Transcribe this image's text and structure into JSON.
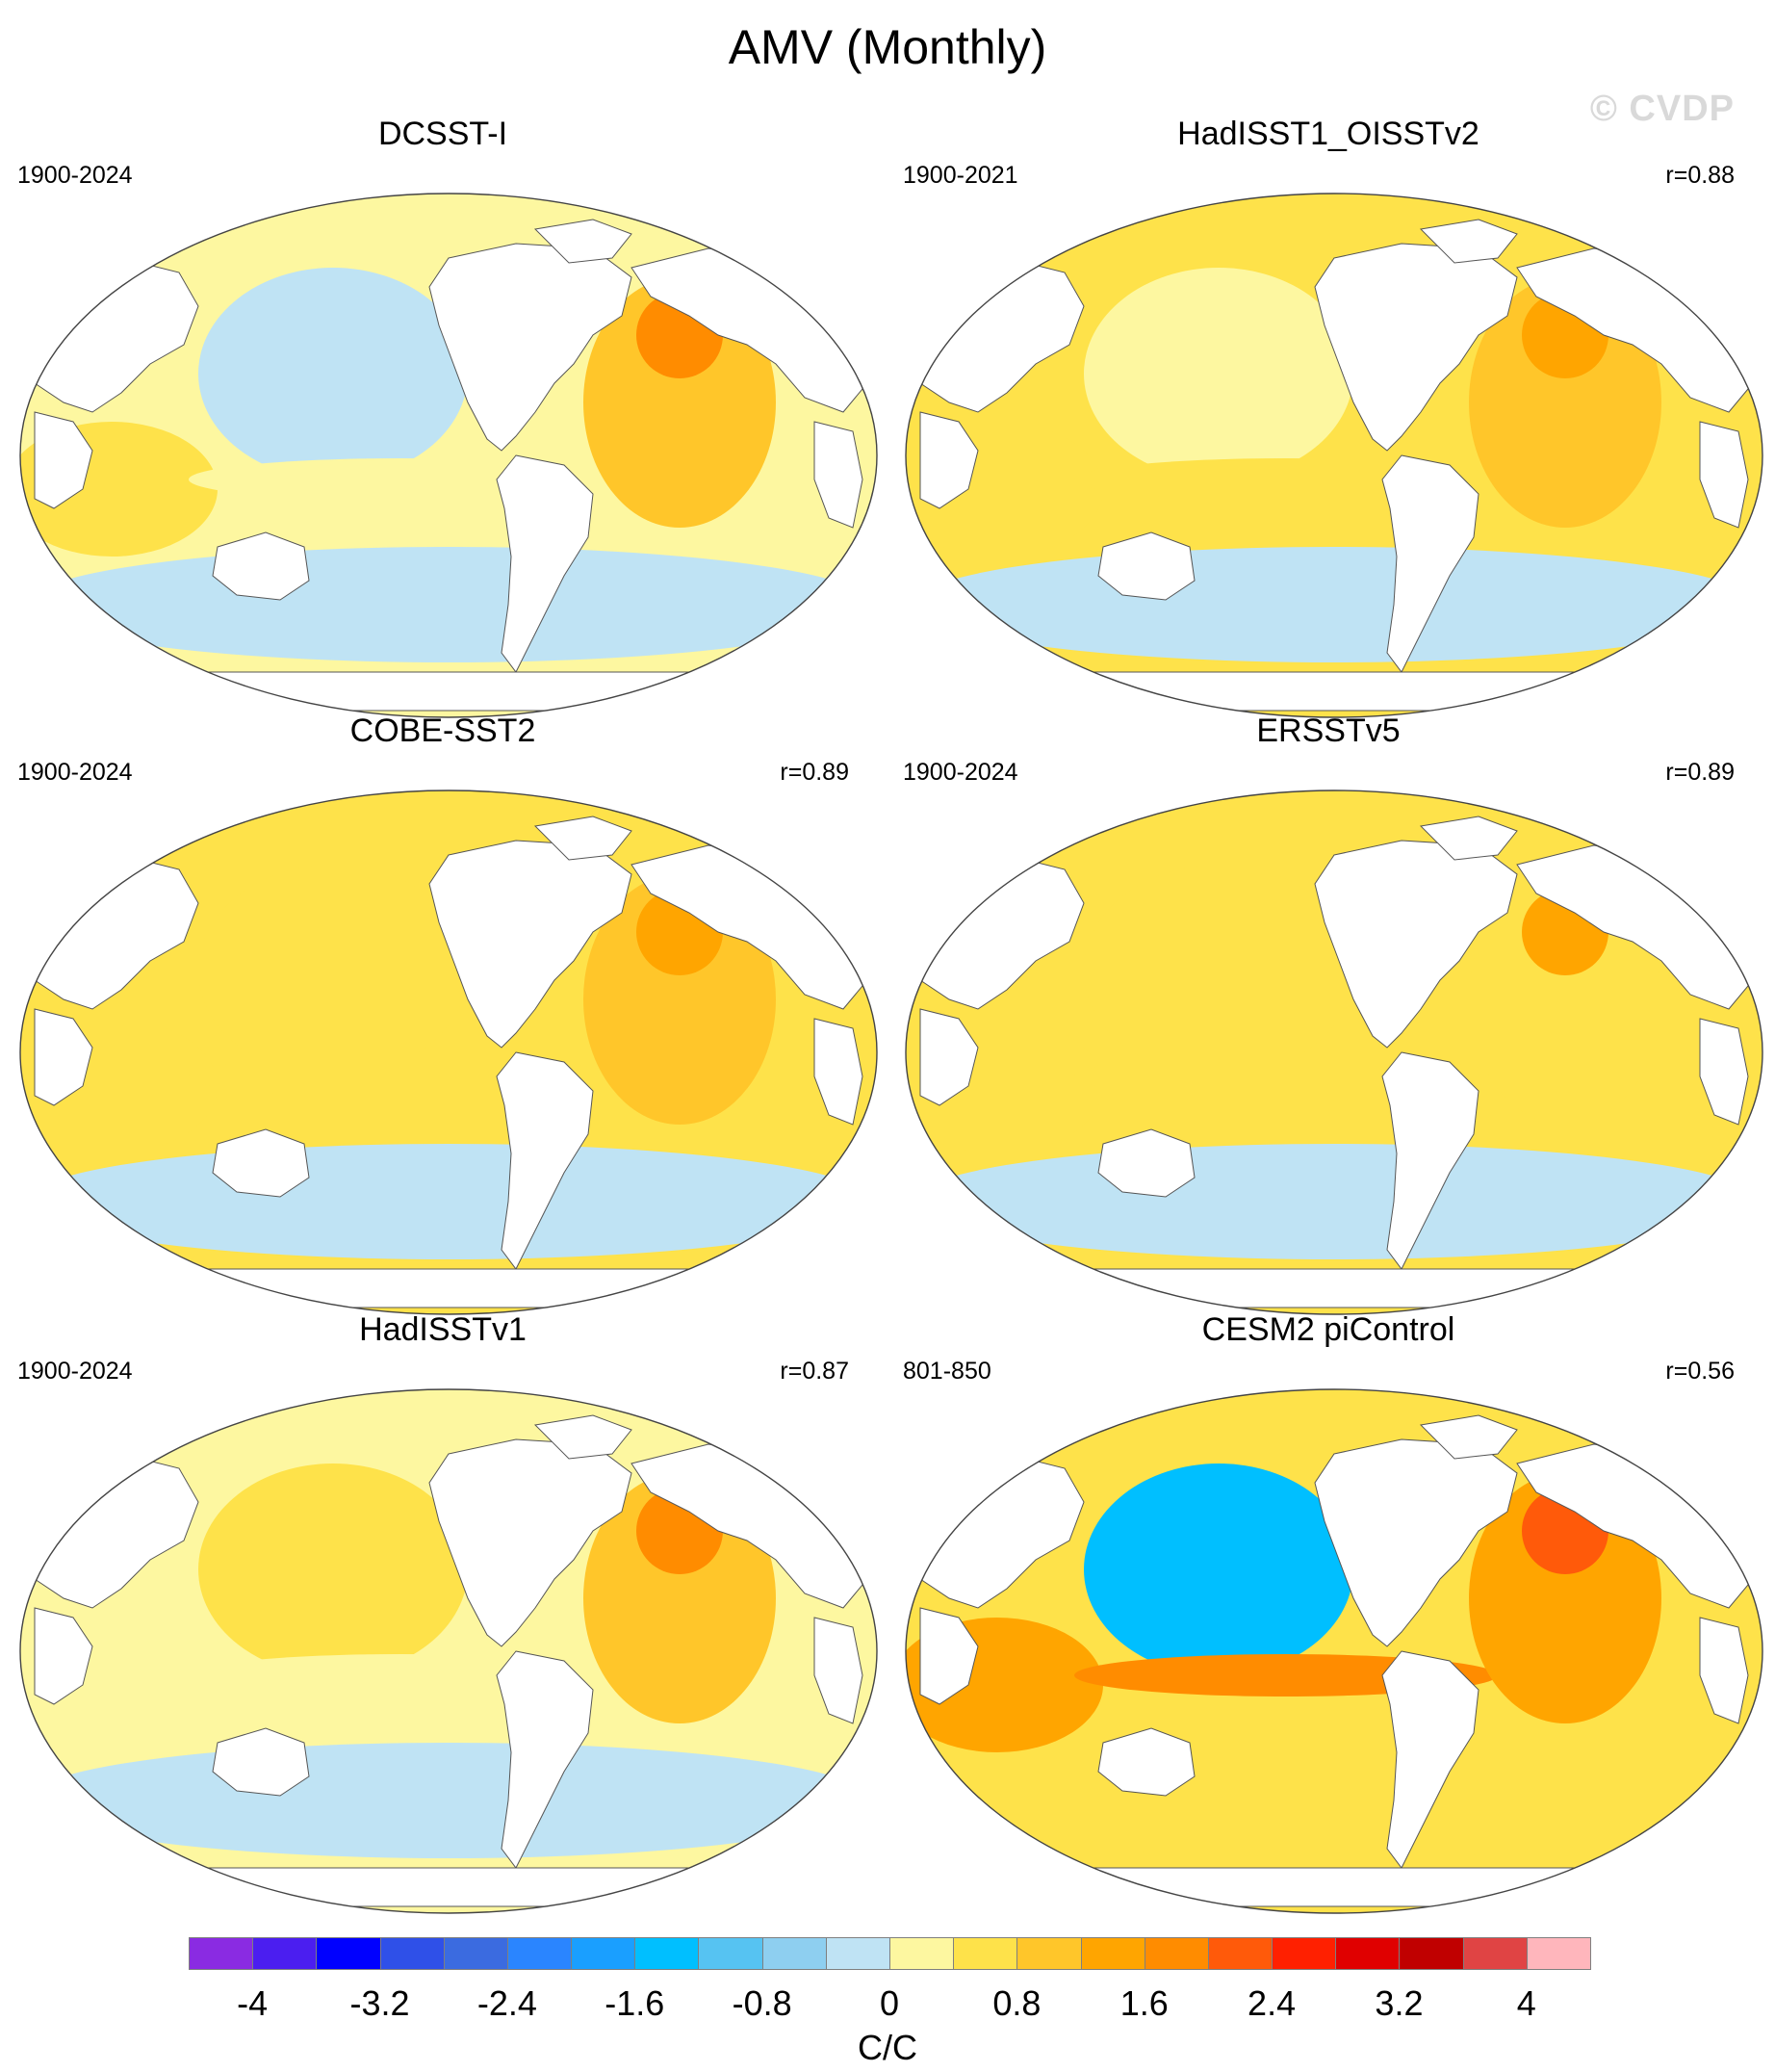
{
  "figure": {
    "title": "AMV (Monthly)",
    "copyright": "© CVDP"
  },
  "chart_data": [
    {
      "type": "heatmap",
      "projection": "robinson",
      "title": "DCSST-I",
      "period": "1900-2024",
      "correlation": "",
      "patterns": {
        "north_atlantic": 1.6,
        "north_pacific": -0.2,
        "tropics": 0.3,
        "southern_ocean": -0.4,
        "indian_ocean": 0.5,
        "tropical_pacific_east": 0.3
      }
    },
    {
      "type": "heatmap",
      "projection": "robinson",
      "title": "HadISST1_OISSTv2",
      "period": "1900-2021",
      "correlation": "r=0.88",
      "patterns": {
        "north_atlantic": 1.5,
        "north_pacific": 0.3,
        "tropics": 0.4,
        "southern_ocean": -0.2,
        "indian_ocean": 0.4,
        "tropical_pacific_east": 0.4
      }
    },
    {
      "type": "heatmap",
      "projection": "robinson",
      "title": "COBE-SST2",
      "period": "1900-2024",
      "correlation": "r=0.89",
      "patterns": {
        "north_atlantic": 1.5,
        "north_pacific": 0.5,
        "tropics": 0.4,
        "southern_ocean": -0.3,
        "indian_ocean": 0.5,
        "tropical_pacific_east": 0.4
      }
    },
    {
      "type": "heatmap",
      "projection": "robinson",
      "title": "ERSSTv5",
      "period": "1900-2024",
      "correlation": "r=0.89",
      "patterns": {
        "north_atlantic": 1.3,
        "north_pacific": 0.4,
        "tropics": 0.4,
        "southern_ocean": -0.4,
        "indian_ocean": 0.4,
        "tropical_pacific_east": 0.5
      }
    },
    {
      "type": "heatmap",
      "projection": "robinson",
      "title": "HadISSTv1",
      "period": "1900-2024",
      "correlation": "r=0.87",
      "patterns": {
        "north_atlantic": 1.6,
        "north_pacific": 0.4,
        "tropics": 0.3,
        "southern_ocean": -0.3,
        "indian_ocean": 0.3,
        "tropical_pacific_east": 0.3
      }
    },
    {
      "type": "heatmap",
      "projection": "robinson",
      "title": "CESM2 piControl",
      "period": "801-850",
      "correlation": "r=0.56",
      "patterns": {
        "north_atlantic": 2.0,
        "north_pacific": -1.6,
        "tropics": 0.6,
        "southern_ocean": 0.4,
        "indian_ocean": 1.2,
        "tropical_pacific_east": 1.8
      }
    }
  ],
  "colorbar": {
    "units": "C/C",
    "ticks": [
      "-4",
      "-3.2",
      "-2.4",
      "-1.6",
      "-0.8",
      "0",
      "0.8",
      "1.6",
      "2.4",
      "3.2",
      "4"
    ],
    "levels": [
      -4.4,
      -4.0,
      -3.6,
      -3.2,
      -2.8,
      -2.4,
      -2.0,
      -1.6,
      -1.2,
      -0.8,
      -0.4,
      0.0,
      0.4,
      0.8,
      1.2,
      1.6,
      2.0,
      2.4,
      2.8,
      3.2,
      3.6,
      4.0,
      4.4
    ],
    "colors": [
      "#8a2be2",
      "#4b1ef0",
      "#0000ff",
      "#2f50e8",
      "#3b6be0",
      "#2a85ff",
      "#1a9fff",
      "#00bfff",
      "#56c3f2",
      "#8ecff0",
      "#bfe3f4",
      "#fdf7a0",
      "#fee24a",
      "#ffc62a",
      "#ffa500",
      "#ff8c00",
      "#ff5a0a",
      "#ff2000",
      "#e00000",
      "#c00000",
      "#e04444",
      "#ffb6bc"
    ]
  }
}
